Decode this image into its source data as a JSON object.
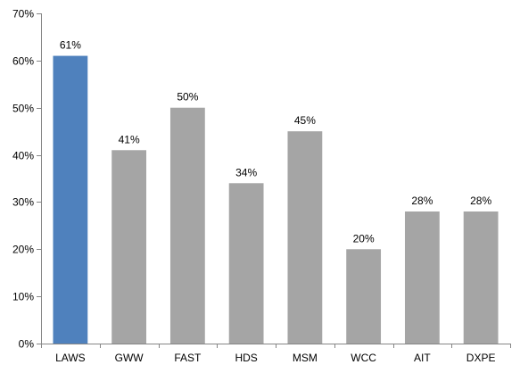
{
  "chart_data": {
    "type": "bar",
    "categories": [
      "LAWS",
      "GWW",
      "FAST",
      "HDS",
      "MSM",
      "WCC",
      "AIT",
      "DXPE"
    ],
    "values": [
      61,
      41,
      50,
      34,
      45,
      20,
      28,
      28
    ],
    "value_labels": [
      "61%",
      "41%",
      "50%",
      "34%",
      "45%",
      "20%",
      "28%",
      "28%"
    ],
    "ylim": [
      0,
      70
    ],
    "y_ticks": [
      0,
      10,
      20,
      30,
      40,
      50,
      60,
      70
    ],
    "y_tick_labels": [
      "0%",
      "10%",
      "20%",
      "30%",
      "40%",
      "50%",
      "60%",
      "70%"
    ],
    "title": "",
    "xlabel": "",
    "ylabel": "",
    "grid": false,
    "legend": "none",
    "colors": {
      "highlight": "#4F81BD",
      "default": "#A5A5A5",
      "axis": "#868686"
    },
    "highlight_index": 0
  }
}
